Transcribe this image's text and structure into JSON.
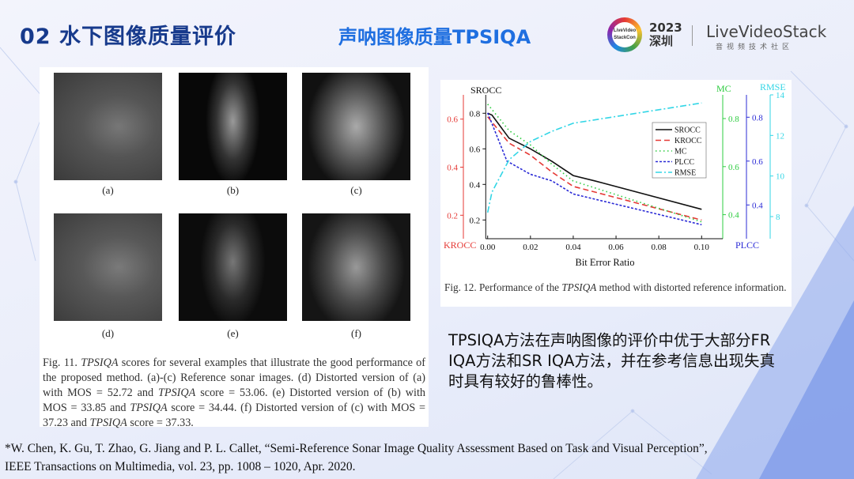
{
  "header": {
    "title": "02  水下图像质量评价",
    "subtitle": "声呐图像质量TPSIQA",
    "logo": {
      "conference": "LiveVideo StackCon",
      "year": "2023",
      "city": "深圳",
      "brand": "LiveVideoStack",
      "brand_sub": "音视频技术社区"
    }
  },
  "figure11": {
    "labels": [
      "(a)",
      "(b)",
      "(c)",
      "(d)",
      "(e)",
      "(f)"
    ],
    "caption_parts": [
      {
        "t": "Fig. 11.  "
      },
      {
        "t": "TPSIQA",
        "i": true
      },
      {
        "t": " scores for several examples that illustrate the good performance of the proposed method. (a)-(c) Reference sonar images. (d) Distorted version of (a) with MOS = 52.72 and "
      },
      {
        "t": "TPSIQA",
        "i": true
      },
      {
        "t": " score = 53.06. (e) Distorted version of (b) with MOS = 33.85 and "
      },
      {
        "t": "TPSIQA",
        "i": true
      },
      {
        "t": " score = 34.44. (f) Distorted version of (c) with MOS = 37.23 and "
      },
      {
        "t": "TPSIQA",
        "i": true
      },
      {
        "t": " score = 37.33."
      }
    ]
  },
  "figure12": {
    "caption_parts": [
      {
        "t": "Fig. 12.  Performance of the "
      },
      {
        "t": "TPSIQA",
        "i": true
      },
      {
        "t": " method with distorted reference information."
      }
    ]
  },
  "chart_data": {
    "type": "line",
    "xlabel": "Bit Error Ratio",
    "xlim": [
      0,
      0.1
    ],
    "xticks": [
      "0.00",
      "0.02",
      "0.04",
      "0.06",
      "0.08",
      "0.10"
    ],
    "legend_placement": "center-right",
    "axes": {
      "SROCC": {
        "color": "#111111",
        "ticks": [
          "0.2",
          "0.4",
          "0.6",
          "0.8"
        ]
      },
      "KROCC": {
        "color": "#e53935",
        "ticks": [
          "0.2",
          "0.4",
          "0.6"
        ]
      },
      "MC": {
        "color": "#2ecc40",
        "ticks": [
          "0.4",
          "0.6",
          "0.8"
        ]
      },
      "PLCC": {
        "color": "#2b2bd6",
        "ticks": [
          "0.4",
          "0.6",
          "0.8"
        ]
      },
      "RMSE": {
        "color": "#33d6e6",
        "ticks": [
          "8",
          "10",
          "12",
          "14"
        ]
      }
    },
    "series": [
      {
        "name": "SROCC",
        "axis": "SROCC",
        "color": "#111111",
        "style": "solid",
        "x": [
          0,
          0.002,
          0.01,
          0.02,
          0.03,
          0.04,
          0.05,
          0.1
        ],
        "y": [
          0.8,
          0.79,
          0.66,
          0.6,
          0.53,
          0.45,
          0.42,
          0.26
        ]
      },
      {
        "name": "KROCC",
        "axis": "KROCC",
        "color": "#e53935",
        "style": "dashed",
        "x": [
          0,
          0.01,
          0.02,
          0.03,
          0.04,
          0.1
        ],
        "y": [
          0.61,
          0.5,
          0.45,
          0.38,
          0.32,
          0.18
        ]
      },
      {
        "name": "MC",
        "axis": "MC",
        "color": "#2ecc40",
        "style": "dotted",
        "x": [
          0,
          0.01,
          0.02,
          0.03,
          0.04,
          0.1
        ],
        "y": [
          0.86,
          0.75,
          0.69,
          0.61,
          0.54,
          0.37
        ]
      },
      {
        "name": "PLCC",
        "axis": "PLCC",
        "color": "#2b2bd6",
        "style": "short-dashed",
        "x": [
          0,
          0.009,
          0.02,
          0.03,
          0.04,
          0.1
        ],
        "y": [
          0.82,
          0.6,
          0.54,
          0.51,
          0.45,
          0.31
        ]
      },
      {
        "name": "RMSE",
        "axis": "RMSE",
        "color": "#33d6e6",
        "style": "dash-dot",
        "x": [
          0,
          0.002,
          0.01,
          0.02,
          0.03,
          0.04,
          0.1
        ],
        "y": [
          8.2,
          9.2,
          10.8,
          11.7,
          12.2,
          12.6,
          13.6
        ]
      }
    ]
  },
  "description": "TPSIQA方法在声呐图像的评价中优于大部分FR IQA方法和SR IQA方法，并在参考信息出现失真时具有较好的鲁棒性。",
  "reference": [
    "*W. Chen, K. Gu, T. Zhao, G. Jiang and P. L. Callet, “Semi-Reference Sonar Image Quality Assessment Based on Task and Visual Perception”,",
    "IEEE Transactions on Multimedia, vol. 23, pp. 1008 – 1020, Apr. 2020."
  ]
}
